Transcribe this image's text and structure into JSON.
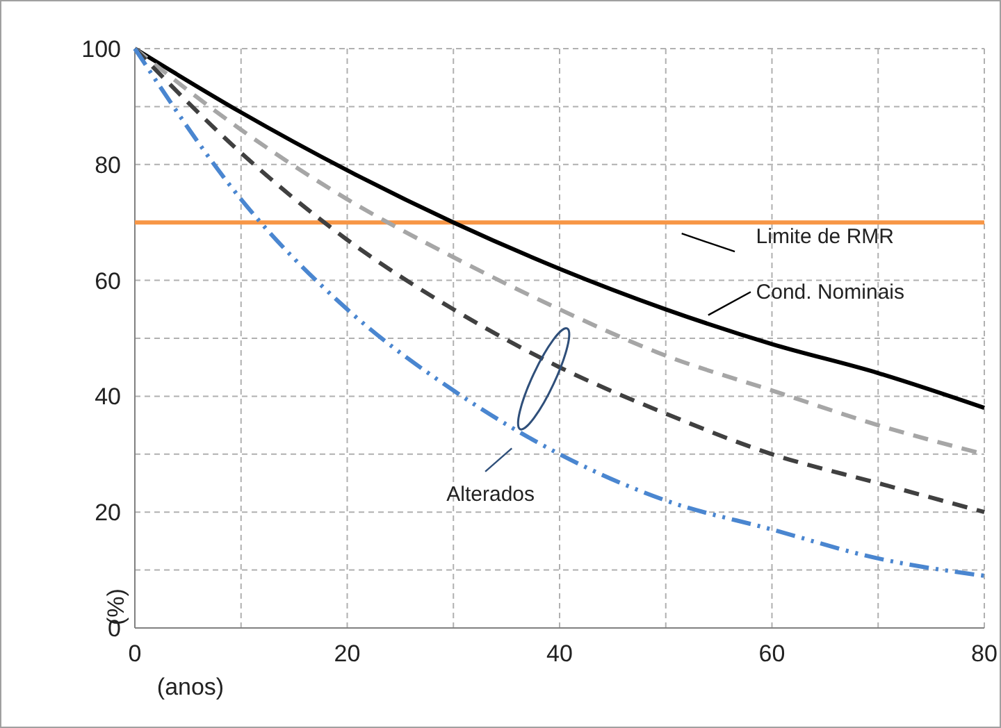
{
  "chart_data": {
    "type": "line",
    "xlabel": "(anos)",
    "ylabel": "(%)",
    "x": [
      0,
      10,
      20,
      30,
      40,
      50,
      60,
      70,
      80
    ],
    "xlim": [
      0,
      80
    ],
    "xticks": [
      0,
      {
        "value": 10,
        "label": null
      },
      20,
      {
        "value": 30,
        "label": null
      },
      40,
      {
        "value": 50,
        "label": null
      },
      60,
      {
        "value": 70,
        "label": null
      },
      80
    ],
    "ylim": [
      0,
      100
    ],
    "yticks": [
      0,
      {
        "value": 10,
        "label": null
      },
      20,
      {
        "value": 30,
        "label": null
      },
      40,
      {
        "value": 50,
        "label": null
      },
      60,
      {
        "value": 70,
        "label": null
      },
      80,
      {
        "value": 90,
        "label": null
      },
      100
    ],
    "grid": true,
    "marker": "none",
    "series": [
      {
        "name": "Cond. Nominais",
        "color": "#000000",
        "line_style": "solid",
        "values": [
          100,
          89,
          79,
          70,
          62,
          55,
          49,
          44,
          38
        ]
      },
      {
        "color": "#a6a6a6",
        "line_style": "dashed",
        "values": [
          100,
          86,
          74,
          64,
          55,
          47,
          41,
          35,
          30
        ]
      },
      {
        "color": "#404040",
        "line_style": "dashed",
        "values": [
          100,
          82,
          67,
          55,
          45,
          37,
          30,
          25,
          20
        ]
      },
      {
        "color": "#4a86d0",
        "line_style": "dotted",
        "values": [
          100,
          74,
          55,
          41,
          30,
          22,
          17,
          12,
          9
        ]
      }
    ],
    "ref_lines": [
      {
        "axis": "y",
        "value": 70,
        "label": "Limite de RMR",
        "color": "#f79646"
      }
    ],
    "annotations": [
      "Alterados"
    ]
  }
}
